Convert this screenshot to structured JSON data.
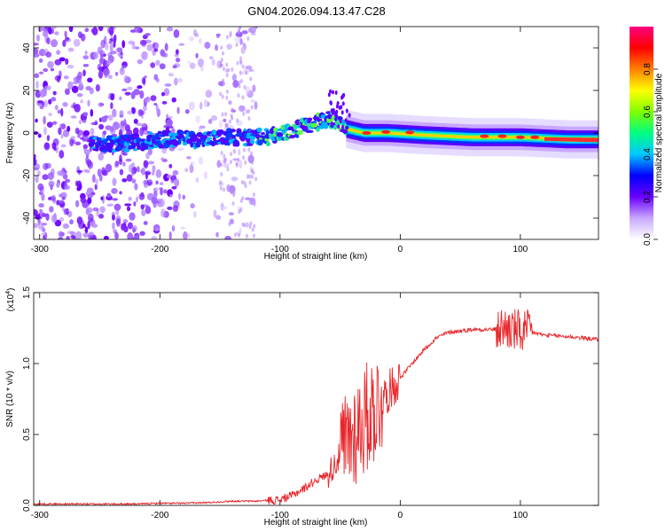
{
  "title": "GN04.2026.094.13.47.C28",
  "chart_data": [
    {
      "type": "heatmap",
      "name": "spectrogram",
      "xlabel": "Height of straight line (km)",
      "ylabel": "Frequency (Hz)",
      "xlim": [
        -305,
        165
      ],
      "ylim": [
        -50,
        50
      ],
      "xticks": [
        -300,
        -200,
        -100,
        0,
        100
      ],
      "yticks": [
        -40,
        -20,
        0,
        20,
        40
      ],
      "colorbar": {
        "label": "Normalized spectral amplitude",
        "range": [
          0,
          1
        ],
        "ticks": [
          0.0,
          0.2,
          0.4,
          0.6,
          0.8
        ],
        "colors": [
          "#ffffff",
          "#c8a8ff",
          "#6a00ff",
          "#0000ff",
          "#00c8ff",
          "#00ff80",
          "#80ff00",
          "#ffff00",
          "#ff8000",
          "#ff0000",
          "#ff0080"
        ]
      },
      "ridge_frequency_hz": [
        [
          -255,
          -5
        ],
        [
          -230,
          -5
        ],
        [
          -200,
          -3
        ],
        [
          -170,
          -3
        ],
        [
          -140,
          -2
        ],
        [
          -110,
          -2
        ],
        [
          -90,
          1
        ],
        [
          -70,
          5
        ],
        [
          -55,
          7
        ],
        [
          -45,
          2
        ],
        [
          -30,
          0
        ],
        [
          -10,
          0
        ],
        [
          20,
          -1
        ],
        [
          60,
          -2
        ],
        [
          100,
          -2
        ],
        [
          140,
          -3
        ],
        [
          165,
          -3
        ]
      ]
    },
    {
      "type": "line",
      "name": "snr",
      "xlabel": "Height of straight line (km)",
      "ylabel": "SNR (10 * v/v)",
      "yscale_label": "(x10",
      "yscale_exp": "4",
      "xlim": [
        -305,
        165
      ],
      "ylim": [
        0,
        1.5
      ],
      "xticks": [
        -300,
        -200,
        -100,
        0,
        100
      ],
      "yticks": [
        "0.0",
        "0.5",
        "1.0",
        "1.5"
      ],
      "series": [
        {
          "name": "SNR",
          "color": "#e8262a",
          "x": [
            -305,
            -280,
            -250,
            -220,
            -200,
            -180,
            -160,
            -140,
            -120,
            -100,
            -90,
            -80,
            -70,
            -60,
            -50,
            -40,
            -30,
            -20,
            -10,
            0,
            10,
            20,
            30,
            40,
            60,
            80,
            90,
            100,
            110,
            120,
            140,
            165
          ],
          "y": [
            0.01,
            0.01,
            0.01,
            0.01,
            0.015,
            0.015,
            0.02,
            0.03,
            0.03,
            0.04,
            0.07,
            0.12,
            0.18,
            0.22,
            0.35,
            0.5,
            0.6,
            0.7,
            0.8,
            0.9,
            1.0,
            1.1,
            1.18,
            1.22,
            1.24,
            1.24,
            1.25,
            1.22,
            1.22,
            1.2,
            1.19,
            1.17
          ]
        }
      ]
    }
  ]
}
